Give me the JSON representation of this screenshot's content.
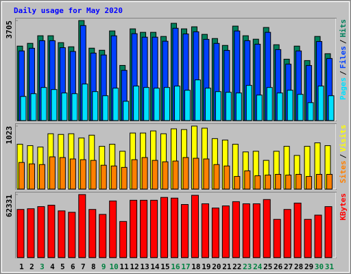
{
  "title": "Daily usage for May 2020",
  "legend_separator": "/",
  "chart_data": [
    {
      "type": "bar",
      "series": [
        {
          "name": "Pages",
          "color": "#00e0ff",
          "values": [
            894,
            996,
            1226,
            1150,
            1022,
            996,
            1354,
            1073,
            920,
            1201,
            715,
            1278,
            1226,
            1201,
            1226,
            1278,
            1124,
            1507,
            1201,
            1073,
            1048,
            1022,
            1303,
            945,
            1226,
            1022,
            1124,
            971,
            664,
            1278,
            920
          ]
        },
        {
          "name": "Files",
          "color": "#0040ff",
          "values": [
            2580,
            2680,
            2960,
            2960,
            2700,
            2560,
            3520,
            2500,
            2430,
            3140,
            1860,
            3220,
            3090,
            3090,
            2940,
            3420,
            3210,
            3290,
            3010,
            2860,
            2600,
            3320,
            2960,
            2830,
            3270,
            2630,
            2090,
            2580,
            2040,
            2930,
            2300
          ]
        },
        {
          "name": "Hits",
          "color": "#00805c",
          "values": [
            2759,
            2862,
            3143,
            3143,
            2887,
            2734,
            3705,
            2683,
            2606,
            3322,
            2044,
            3398,
            3270,
            3270,
            3117,
            3603,
            3398,
            3475,
            3194,
            3040,
            2785,
            3500,
            3143,
            3015,
            3449,
            2810,
            2274,
            2759,
            2223,
            3117,
            2478
          ]
        }
      ],
      "ylim": [
        0,
        3705
      ],
      "yticks": [
        3705
      ]
    },
    {
      "type": "bar",
      "series": [
        {
          "name": "Sites",
          "color": "#ff8000",
          "values": [
            432,
            409,
            398,
            523,
            512,
            489,
            477,
            466,
            387,
            375,
            352,
            477,
            512,
            466,
            443,
            455,
            512,
            500,
            489,
            398,
            375,
            205,
            296,
            216,
            227,
            239,
            227,
            239,
            205,
            239,
            239
          ]
        },
        {
          "name": "Visits",
          "color": "#ffff00",
          "values": [
            728,
            705,
            682,
            898,
            887,
            898,
            830,
            875,
            694,
            728,
            614,
            910,
            910,
            944,
            898,
            978,
            966,
            1023,
            989,
            819,
            796,
            728,
            603,
            614,
            466,
            614,
            694,
            546,
            694,
            750,
            705
          ]
        }
      ],
      "ylim": [
        0,
        1023
      ],
      "yticks": [
        1023
      ]
    },
    {
      "type": "bar",
      "categories": [
        "1",
        "2",
        "3",
        "4",
        "5",
        "6",
        "7",
        "8",
        "9",
        "10",
        "11",
        "12",
        "13",
        "14",
        "15",
        "16",
        "17",
        "18",
        "19",
        "20",
        "21",
        "22",
        "23",
        "24",
        "25",
        "26",
        "27",
        "28",
        "29",
        "30",
        "31"
      ],
      "category_colors": [
        "#000000",
        "#000000",
        "#008040",
        "#000000",
        "#000000",
        "#000000",
        "#000000",
        "#000000",
        "#008040",
        "#008040",
        "#000000",
        "#000000",
        "#000000",
        "#000000",
        "#000000",
        "#008040",
        "#008040",
        "#000000",
        "#000000",
        "#000000",
        "#000000",
        "#000000",
        "#008040",
        "#008040",
        "#000000",
        "#000000",
        "#000000",
        "#000000",
        "#000000",
        "#008040",
        "#008040"
      ],
      "series": [
        {
          "name": "KBytes",
          "color": "#ff0000",
          "values": [
            47600,
            48300,
            50400,
            51800,
            46200,
            44800,
            62331,
            47600,
            42700,
            56000,
            35700,
            56700,
            56700,
            56700,
            59500,
            58800,
            52500,
            61600,
            53200,
            49000,
            51100,
            55300,
            53200,
            53200,
            57400,
            37800,
            47600,
            53900,
            37800,
            42000,
            50400
          ]
        }
      ],
      "ylim": [
        0,
        62331
      ],
      "yticks": [
        62331
      ]
    }
  ]
}
